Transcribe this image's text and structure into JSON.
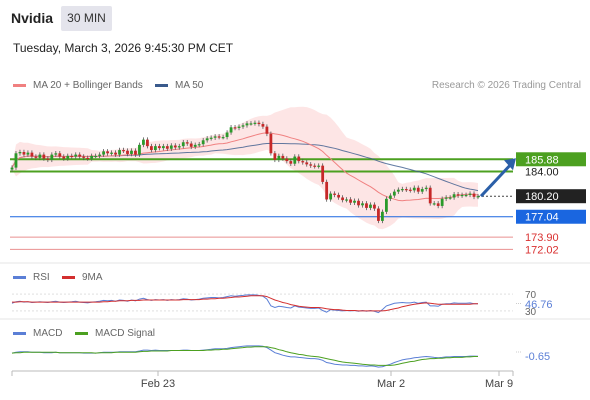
{
  "header": {
    "symbol": "Nvidia",
    "timeframe": "30 MIN",
    "timestamp": "Tuesday, March 3, 2026 9:45:30 PM CET"
  },
  "legend": {
    "ma20_label": "MA 20 + Bollinger Bands",
    "ma50_label": "MA 50",
    "credit": "Research © 2026 Trading Central",
    "ma20_color": "#f08080",
    "ma50_color": "#3a5a8c",
    "band_color": "#fde2e2"
  },
  "rsi_panel": {
    "rsi_label": "RSI",
    "ma_label": "9MA",
    "rsi_color": "#5b7fd6",
    "ma_color": "#d32f2f",
    "level_high": "70",
    "level_low": "30",
    "current_value": "46.76"
  },
  "macd_panel": {
    "macd_label": "MACD",
    "signal_label": "MACD Signal",
    "macd_color": "#5b7fd6",
    "signal_color": "#4ca020",
    "current_value": "-0.65"
  },
  "chart_data": {
    "type": "candlestick",
    "x_ticks": [
      "Feb 23",
      "Mar 2",
      "Mar 9"
    ],
    "y_range": [
      171.0,
      195.0
    ],
    "levels": [
      {
        "label": "185.88",
        "value": 185.88,
        "color": "#4ca020",
        "style": "resistance"
      },
      {
        "label": "184.00",
        "value": 184.0,
        "color": "#4ca020",
        "style": "resistance"
      },
      {
        "label": "180.20",
        "value": 180.2,
        "color": "#222222",
        "style": "last-price"
      },
      {
        "label": "177.04",
        "value": 177.04,
        "color": "#1a66e0",
        "style": "pivot"
      },
      {
        "label": "173.90",
        "value": 173.9,
        "color": "#e06060",
        "style": "support"
      },
      {
        "label": "172.02",
        "value": 172.02,
        "color": "#e06060",
        "style": "support"
      }
    ],
    "last_price": 180.2,
    "close": [
      184.6,
      186.8,
      187.0,
      186.6,
      186.9,
      186.3,
      186.1,
      186.6,
      186.0,
      185.8,
      186.6,
      186.8,
      186.3,
      186.0,
      186.4,
      186.3,
      186.6,
      186.3,
      186.1,
      186.0,
      186.4,
      186.4,
      186.6,
      187.1,
      186.8,
      186.9,
      186.6,
      187.3,
      187.2,
      186.7,
      187.2,
      186.6,
      188.1,
      188.9,
      187.9,
      187.3,
      187.9,
      187.6,
      187.9,
      187.5,
      188.0,
      187.7,
      187.9,
      188.5,
      188.3,
      187.8,
      188.1,
      188.2,
      188.8,
      189.1,
      189.2,
      189.4,
      189.3,
      189.3,
      190.0,
      190.8,
      190.7,
      190.9,
      191.1,
      191.4,
      191.4,
      191.5,
      191.3,
      190.9,
      189.8,
      186.8,
      185.8,
      186.4,
      186.0,
      185.6,
      185.2,
      186.3,
      185.6,
      185.4,
      185.1,
      184.9,
      184.8,
      184.9,
      182.4,
      179.7,
      180.6,
      180.4,
      180.0,
      179.6,
      179.7,
      179.2,
      179.5,
      178.8,
      179.1,
      178.4,
      178.9,
      178.3,
      176.4,
      177.8,
      179.8,
      180.3,
      180.9,
      181.2,
      181.3,
      181.2,
      181.1,
      181.5,
      180.9,
      181.3,
      181.5,
      179.1,
      179.1,
      178.7,
      179.8,
      180.0,
      180.0,
      180.5,
      180.3,
      180.4,
      180.4,
      180.6,
      180.1,
      180.2
    ],
    "rsi": [
      48,
      52,
      53,
      51,
      52,
      50,
      51,
      52,
      51,
      50,
      52,
      53,
      51,
      50,
      51,
      52,
      53,
      51,
      50,
      49,
      51,
      52,
      53,
      55,
      54,
      55,
      53,
      56,
      55,
      53,
      56,
      54,
      58,
      60,
      57,
      55,
      57,
      56,
      57,
      55,
      57,
      56,
      57,
      59,
      58,
      56,
      57,
      58,
      60,
      61,
      62,
      62,
      61,
      62,
      64,
      66,
      65,
      66,
      67,
      68,
      68,
      68,
      67,
      65,
      58,
      42,
      38,
      41,
      40,
      38,
      37,
      42,
      39,
      38,
      37,
      36,
      36,
      37,
      31,
      27,
      33,
      32,
      31,
      30,
      31,
      30,
      31,
      29,
      31,
      29,
      31,
      29,
      26,
      33,
      42,
      45,
      48,
      49,
      50,
      49,
      49,
      51,
      48,
      50,
      51,
      42,
      42,
      41,
      46,
      47,
      47,
      49,
      48,
      48,
      48,
      49,
      47,
      47
    ],
    "rsi_ma": [
      51,
      51,
      52,
      52,
      52,
      51,
      51,
      51,
      51,
      51,
      51,
      51,
      51,
      51,
      51,
      51,
      51,
      51,
      51,
      51,
      51,
      51,
      51,
      52,
      52,
      53,
      53,
      54,
      54,
      54,
      55,
      55,
      55,
      56,
      56,
      56,
      56,
      56,
      56,
      56,
      56,
      56,
      56,
      57,
      57,
      57,
      57,
      57,
      58,
      58,
      59,
      59,
      60,
      60,
      61,
      62,
      63,
      63,
      64,
      65,
      66,
      66,
      66,
      66,
      64,
      60,
      56,
      53,
      50,
      48,
      45,
      43,
      41,
      40,
      39,
      38,
      38,
      38,
      37,
      35,
      34,
      33,
      33,
      32,
      31,
      31,
      31,
      30,
      30,
      30,
      30,
      30,
      30,
      30,
      31,
      33,
      35,
      37,
      40,
      42,
      44,
      46,
      47,
      48,
      49,
      48,
      47,
      46,
      46,
      46,
      46,
      46,
      46,
      46,
      46,
      46,
      47,
      47
    ],
    "macd": [
      0.1,
      0.3,
      0.4,
      0.4,
      0.4,
      0.3,
      0.3,
      0.3,
      0.2,
      0.2,
      0.2,
      0.3,
      0.2,
      0.2,
      0.2,
      0.2,
      0.2,
      0.2,
      0.1,
      0.1,
      0.1,
      0.1,
      0.2,
      0.3,
      0.3,
      0.3,
      0.3,
      0.4,
      0.4,
      0.4,
      0.4,
      0.4,
      0.6,
      0.8,
      0.8,
      0.7,
      0.8,
      0.7,
      0.7,
      0.7,
      0.7,
      0.7,
      0.7,
      0.8,
      0.8,
      0.7,
      0.7,
      0.7,
      0.8,
      0.9,
      1.0,
      1.1,
      1.1,
      1.1,
      1.2,
      1.4,
      1.5,
      1.6,
      1.7,
      1.8,
      1.8,
      1.8,
      1.8,
      1.7,
      1.4,
      0.8,
      0.2,
      -0.1,
      -0.4,
      -0.6,
      -0.8,
      -0.8,
      -0.9,
      -1.0,
      -1.1,
      -1.2,
      -1.2,
      -1.3,
      -1.6,
      -2.1,
      -2.3,
      -2.5,
      -2.6,
      -2.7,
      -2.7,
      -2.8,
      -2.8,
      -2.9,
      -2.9,
      -3.0,
      -2.9,
      -3.0,
      -3.2,
      -3.1,
      -2.8,
      -2.5,
      -2.1,
      -1.8,
      -1.5,
      -1.3,
      -1.2,
      -1.0,
      -0.9,
      -0.8,
      -0.7,
      -0.8,
      -0.9,
      -1.0,
      -0.9,
      -0.8,
      -0.8,
      -0.7,
      -0.7,
      -0.7,
      -0.7,
      -0.6,
      -0.6,
      -0.65
    ],
    "macd_signal": [
      0.1,
      0.2,
      0.2,
      0.3,
      0.3,
      0.3,
      0.3,
      0.3,
      0.3,
      0.3,
      0.3,
      0.3,
      0.2,
      0.2,
      0.2,
      0.2,
      0.2,
      0.2,
      0.2,
      0.2,
      0.2,
      0.1,
      0.2,
      0.2,
      0.2,
      0.2,
      0.3,
      0.3,
      0.3,
      0.3,
      0.3,
      0.3,
      0.4,
      0.5,
      0.5,
      0.6,
      0.6,
      0.6,
      0.6,
      0.6,
      0.7,
      0.7,
      0.7,
      0.7,
      0.7,
      0.7,
      0.7,
      0.7,
      0.7,
      0.8,
      0.8,
      0.9,
      0.9,
      1.0,
      1.0,
      1.1,
      1.2,
      1.3,
      1.4,
      1.5,
      1.5,
      1.6,
      1.6,
      1.6,
      1.6,
      1.4,
      1.2,
      0.9,
      0.7,
      0.4,
      0.2,
      0.0,
      -0.2,
      -0.3,
      -0.5,
      -0.6,
      -0.7,
      -0.8,
      -1.0,
      -1.2,
      -1.4,
      -1.6,
      -1.8,
      -2.0,
      -2.1,
      -2.2,
      -2.3,
      -2.4,
      -2.5,
      -2.6,
      -2.7,
      -2.7,
      -2.8,
      -2.8,
      -2.8,
      -2.8,
      -2.7,
      -2.5,
      -2.3,
      -2.1,
      -1.9,
      -1.8,
      -1.6,
      -1.4,
      -1.3,
      -1.2,
      -1.2,
      -1.1,
      -1.1,
      -1.0,
      -1.0,
      -0.9,
      -0.9,
      -0.9,
      -0.8,
      -0.8,
      -0.7,
      -0.7
    ],
    "outlook_arrow": {
      "from": 180.2,
      "to": 185.88,
      "color": "#2b5fa8"
    }
  }
}
